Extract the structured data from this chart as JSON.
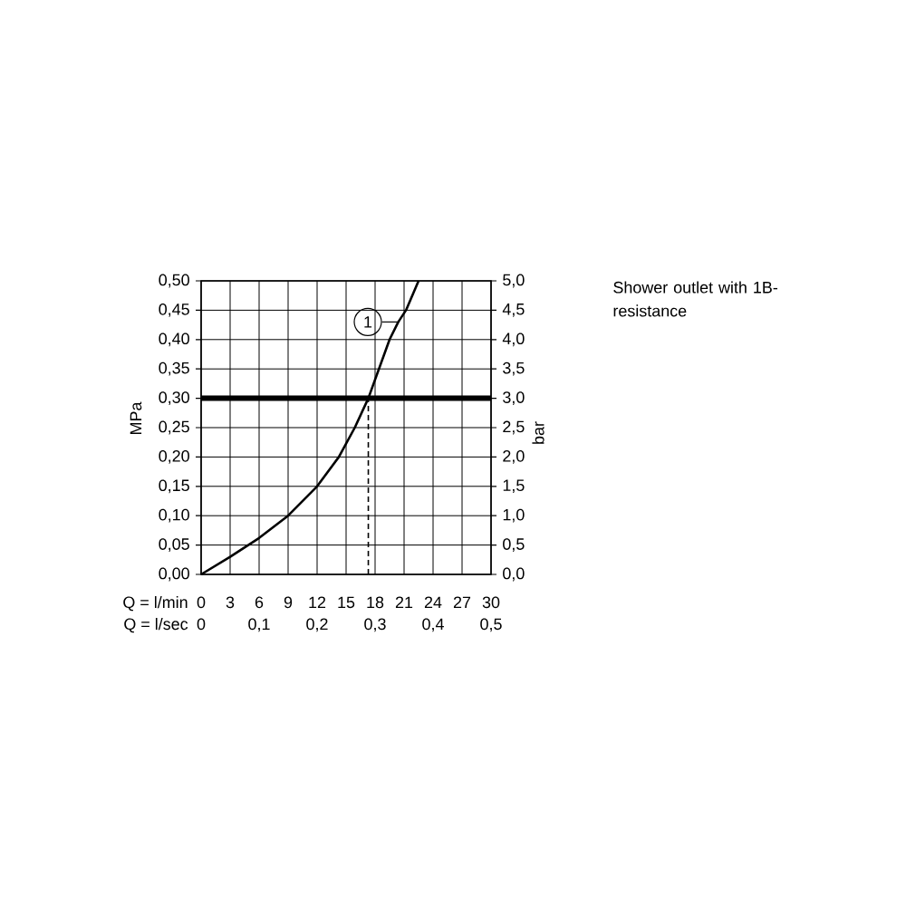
{
  "chart_data": {
    "type": "line",
    "xlabel": "Q = l/min",
    "x2label": "Q = l/sec",
    "ylabel": "MPa",
    "y2label": "bar",
    "annotations": [
      "Shower outlet with 1B-resistance"
    ],
    "xlim": [
      0,
      30
    ],
    "xticks": [
      0,
      3,
      6,
      9,
      12,
      15,
      18,
      21,
      24,
      27,
      30
    ],
    "x2lim": [
      0,
      0.5
    ],
    "x2ticks": [
      0,
      {
        "value": 0.1,
        "label": "0,1"
      },
      {
        "value": 0.2,
        "label": "0,2"
      },
      {
        "value": 0.3,
        "label": "0,3"
      },
      {
        "value": 0.4,
        "label": "0,4"
      },
      {
        "value": 0.5,
        "label": "0,5"
      }
    ],
    "ylim": [
      0,
      0.5
    ],
    "yticks": [
      {
        "value": 0,
        "label": "0,00"
      },
      {
        "value": 0.05,
        "label": "0,05"
      },
      {
        "value": 0.1,
        "label": "0,10"
      },
      {
        "value": 0.15,
        "label": "0,15"
      },
      {
        "value": 0.2,
        "label": "0,20"
      },
      {
        "value": 0.25,
        "label": "0,25"
      },
      {
        "value": 0.3,
        "label": "0,30"
      },
      {
        "value": 0.35,
        "label": "0,35"
      },
      {
        "value": 0.4,
        "label": "0,40"
      },
      {
        "value": 0.45,
        "label": "0,45"
      },
      {
        "value": 0.5,
        "label": "0,50"
      }
    ],
    "y2lim": [
      0,
      5
    ],
    "y2ticks": [
      {
        "value": 0,
        "label": "0,0"
      },
      {
        "value": 0.5,
        "label": "0,5"
      },
      {
        "value": 1,
        "label": "1,0"
      },
      {
        "value": 1.5,
        "label": "1,5"
      },
      {
        "value": 2,
        "label": "2,0"
      },
      {
        "value": 2.5,
        "label": "2,5"
      },
      {
        "value": 3,
        "label": "3,0"
      },
      {
        "value": 3.5,
        "label": "3,5"
      },
      {
        "value": 4,
        "label": "4,0"
      },
      {
        "value": 4.5,
        "label": "4,5"
      },
      {
        "value": 5,
        "label": "5,0"
      }
    ],
    "grid": true,
    "series": [
      {
        "name": "1",
        "color": "#000000",
        "x": [
          0,
          3,
          6,
          9,
          12,
          14.25,
          15.9,
          17.3,
          18.4,
          19.5,
          20.4,
          21.2,
          22.5
        ],
        "values": [
          0,
          0.03,
          0.062,
          0.1,
          0.15,
          0.2,
          0.25,
          0.3,
          0.35,
          0.4,
          0.43,
          0.45,
          0.5
        ]
      }
    ],
    "ref_lines": [
      {
        "axis": "y",
        "value": 0.3,
        "color": "#000000",
        "line_style": "solid"
      },
      {
        "axis": "x",
        "value": 17.3,
        "color": "#000000",
        "line_style": "dashed"
      }
    ]
  }
}
